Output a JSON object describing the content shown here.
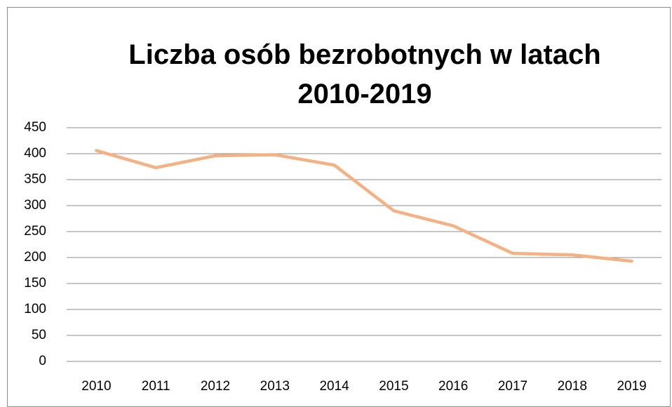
{
  "chart_data": {
    "type": "line",
    "title": "Liczba osób bezrobotnych w latach 2010-2019",
    "categories": [
      "2010",
      "2011",
      "2012",
      "2013",
      "2014",
      "2015",
      "2016",
      "2017",
      "2018",
      "2019"
    ],
    "values": [
      406,
      373,
      396,
      398,
      378,
      290,
      261,
      208,
      205,
      193
    ],
    "color": "#f4b183",
    "ylim": [
      0,
      450
    ],
    "yticks": [
      0,
      50,
      100,
      150,
      200,
      250,
      300,
      350,
      400,
      450
    ],
    "grid": true
  }
}
